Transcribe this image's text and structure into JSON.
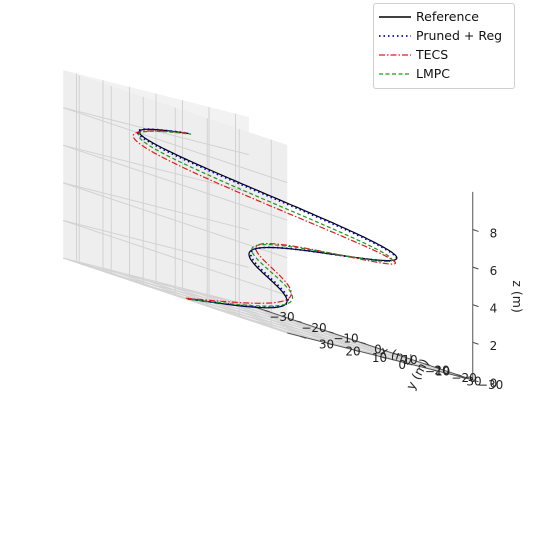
{
  "chart_data": {
    "type": "line3d",
    "title": "",
    "xlabel": "x (m)",
    "ylabel": "y (m)",
    "zlabel": "z (m)",
    "xlim": [
      -35,
      35
    ],
    "ylim": [
      -35,
      35
    ],
    "zlim": [
      0,
      10
    ],
    "x_ticks": [
      "−30",
      "−20",
      "−10",
      "0",
      "10",
      "20",
      "30"
    ],
    "y_ticks": [
      "−30",
      "−20",
      "−10",
      "0",
      "10",
      "20",
      "30"
    ],
    "z_ticks": [
      "0",
      "2",
      "4",
      "6",
      "8"
    ],
    "grid": true,
    "legend_position": "top-right",
    "trajectory": {
      "shape": "lemniscate",
      "t": [
        0,
        0.125,
        0.25,
        0.375,
        0.5,
        0.625,
        0.75,
        0.875,
        1.0
      ],
      "x": [
        0,
        21.2,
        0,
        -21.2,
        0,
        21.2,
        0,
        -21.2,
        0
      ],
      "y": [
        30,
        0,
        -30,
        0,
        30,
        0,
        -30,
        0,
        30
      ],
      "z": [
        0,
        1.1,
        2.2,
        3.3,
        4.4,
        5.5,
        6.6,
        7.7,
        8.8
      ]
    },
    "series": [
      {
        "name": "Reference",
        "color": "#000000",
        "dash": "solid",
        "offset": {
          "x": 0,
          "y": 0,
          "z": 0
        }
      },
      {
        "name": "Pruned + Reg",
        "color": "#0000cc",
        "dash": "dotted",
        "offset": {
          "x": 0.5,
          "y": 0.3,
          "z": 0.05
        }
      },
      {
        "name": "TECS",
        "color": "#e31a1c",
        "dash": "dashdot",
        "offset": {
          "x": 2.0,
          "y": 1.0,
          "z": 0.5
        }
      },
      {
        "name": "LMPC",
        "color": "#1a9a1a",
        "dash": "dashed",
        "offset": {
          "x": 1.5,
          "y": -1.0,
          "z": 0.3
        }
      }
    ]
  }
}
